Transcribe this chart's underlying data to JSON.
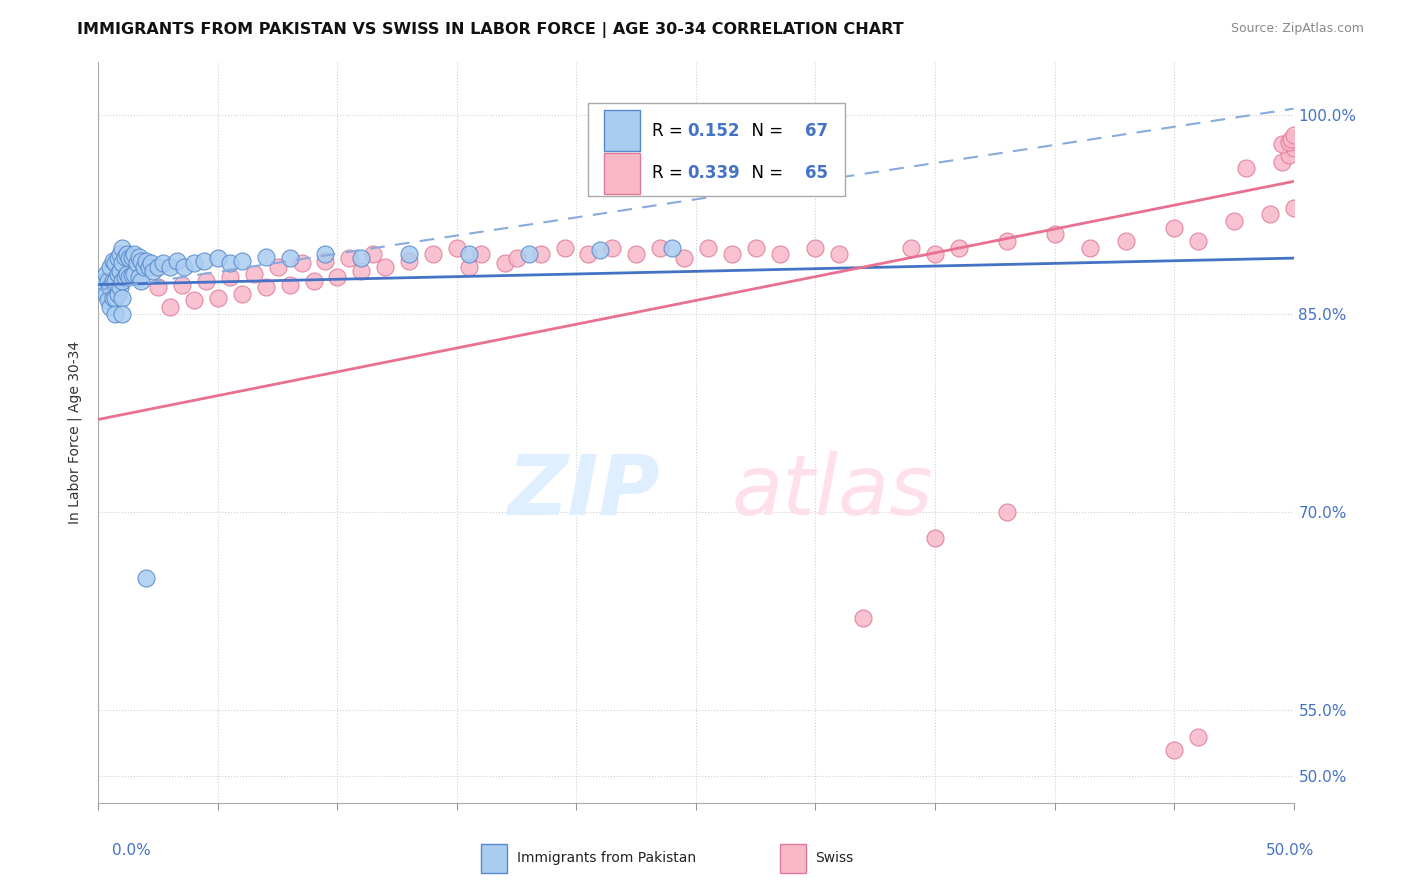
{
  "title": "IMMIGRANTS FROM PAKISTAN VS SWISS IN LABOR FORCE | AGE 30-34 CORRELATION CHART",
  "source": "Source: ZipAtlas.com",
  "ylabel": "In Labor Force | Age 30-34",
  "yticks": [
    "50.0%",
    "55.0%",
    "70.0%",
    "85.0%",
    "100.0%"
  ],
  "ytick_vals": [
    0.5,
    0.55,
    0.7,
    0.85,
    1.0
  ],
  "xlim": [
    0.0,
    0.5
  ],
  "ylim": [
    0.48,
    1.04
  ],
  "r_pakistan": 0.152,
  "n_pakistan": 67,
  "r_swiss": 0.339,
  "n_swiss": 65,
  "color_pakistan_fill": "#aaccf0",
  "color_pakistan_edge": "#5588cc",
  "color_swiss_fill": "#f8b8c8",
  "color_swiss_edge": "#e07898",
  "color_pakistan_line": "#4472c4",
  "color_swiss_line": "#e87090",
  "color_dashed": "#88aadd",
  "pakistan_x": [
    0.001,
    0.002,
    0.003,
    0.003,
    0.004,
    0.004,
    0.005,
    0.005,
    0.005,
    0.006,
    0.006,
    0.006,
    0.007,
    0.007,
    0.007,
    0.007,
    0.008,
    0.008,
    0.008,
    0.009,
    0.009,
    0.009,
    0.01,
    0.01,
    0.01,
    0.01,
    0.01,
    0.011,
    0.011,
    0.012,
    0.012,
    0.013,
    0.013,
    0.014,
    0.014,
    0.015,
    0.015,
    0.016,
    0.017,
    0.017,
    0.018,
    0.018,
    0.019,
    0.02,
    0.021,
    0.022,
    0.023,
    0.025,
    0.027,
    0.03,
    0.033,
    0.036,
    0.04,
    0.044,
    0.05,
    0.055,
    0.06,
    0.07,
    0.08,
    0.095,
    0.11,
    0.13,
    0.155,
    0.18,
    0.21,
    0.24,
    0.02
  ],
  "pakistan_y": [
    0.87,
    0.875,
    0.88,
    0.865,
    0.875,
    0.86,
    0.885,
    0.87,
    0.855,
    0.89,
    0.875,
    0.862,
    0.888,
    0.875,
    0.862,
    0.85,
    0.892,
    0.88,
    0.865,
    0.895,
    0.882,
    0.87,
    0.9,
    0.888,
    0.875,
    0.862,
    0.85,
    0.893,
    0.878,
    0.895,
    0.88,
    0.892,
    0.878,
    0.893,
    0.879,
    0.895,
    0.88,
    0.888,
    0.893,
    0.878,
    0.89,
    0.875,
    0.885,
    0.89,
    0.885,
    0.888,
    0.882,
    0.885,
    0.888,
    0.885,
    0.89,
    0.885,
    0.888,
    0.89,
    0.892,
    0.888,
    0.89,
    0.893,
    0.892,
    0.895,
    0.892,
    0.895,
    0.895,
    0.895,
    0.898,
    0.9,
    0.65
  ],
  "swiss_x": [
    0.025,
    0.03,
    0.035,
    0.04,
    0.045,
    0.05,
    0.055,
    0.06,
    0.065,
    0.07,
    0.075,
    0.08,
    0.085,
    0.09,
    0.095,
    0.1,
    0.105,
    0.11,
    0.115,
    0.12,
    0.13,
    0.14,
    0.15,
    0.155,
    0.16,
    0.17,
    0.175,
    0.185,
    0.195,
    0.205,
    0.215,
    0.225,
    0.235,
    0.245,
    0.255,
    0.265,
    0.275,
    0.285,
    0.3,
    0.31,
    0.32,
    0.34,
    0.35,
    0.36,
    0.38,
    0.4,
    0.415,
    0.43,
    0.45,
    0.46,
    0.35,
    0.38,
    0.45,
    0.46,
    0.475,
    0.49,
    0.5,
    0.48,
    0.495,
    0.498,
    0.5,
    0.495,
    0.498,
    0.499,
    0.5
  ],
  "swiss_y": [
    0.87,
    0.855,
    0.872,
    0.86,
    0.875,
    0.862,
    0.878,
    0.865,
    0.88,
    0.87,
    0.885,
    0.872,
    0.888,
    0.875,
    0.89,
    0.878,
    0.892,
    0.882,
    0.895,
    0.885,
    0.89,
    0.895,
    0.9,
    0.885,
    0.895,
    0.888,
    0.892,
    0.895,
    0.9,
    0.895,
    0.9,
    0.895,
    0.9,
    0.892,
    0.9,
    0.895,
    0.9,
    0.895,
    0.9,
    0.895,
    0.62,
    0.9,
    0.895,
    0.9,
    0.905,
    0.91,
    0.9,
    0.905,
    0.915,
    0.905,
    0.68,
    0.7,
    0.52,
    0.53,
    0.92,
    0.925,
    0.93,
    0.96,
    0.965,
    0.97,
    0.975,
    0.978,
    0.98,
    0.982,
    0.985
  ],
  "pak_line_x0": 0.0,
  "pak_line_y0": 0.872,
  "pak_line_x1": 0.5,
  "pak_line_y1": 0.892,
  "swiss_line_x0": 0.0,
  "swiss_line_y0": 0.77,
  "swiss_line_x1": 0.5,
  "swiss_line_y1": 0.95,
  "dashed_line_x0": 0.0,
  "dashed_line_y0": 0.868,
  "dashed_line_x1": 0.5,
  "dashed_line_y1": 1.005
}
